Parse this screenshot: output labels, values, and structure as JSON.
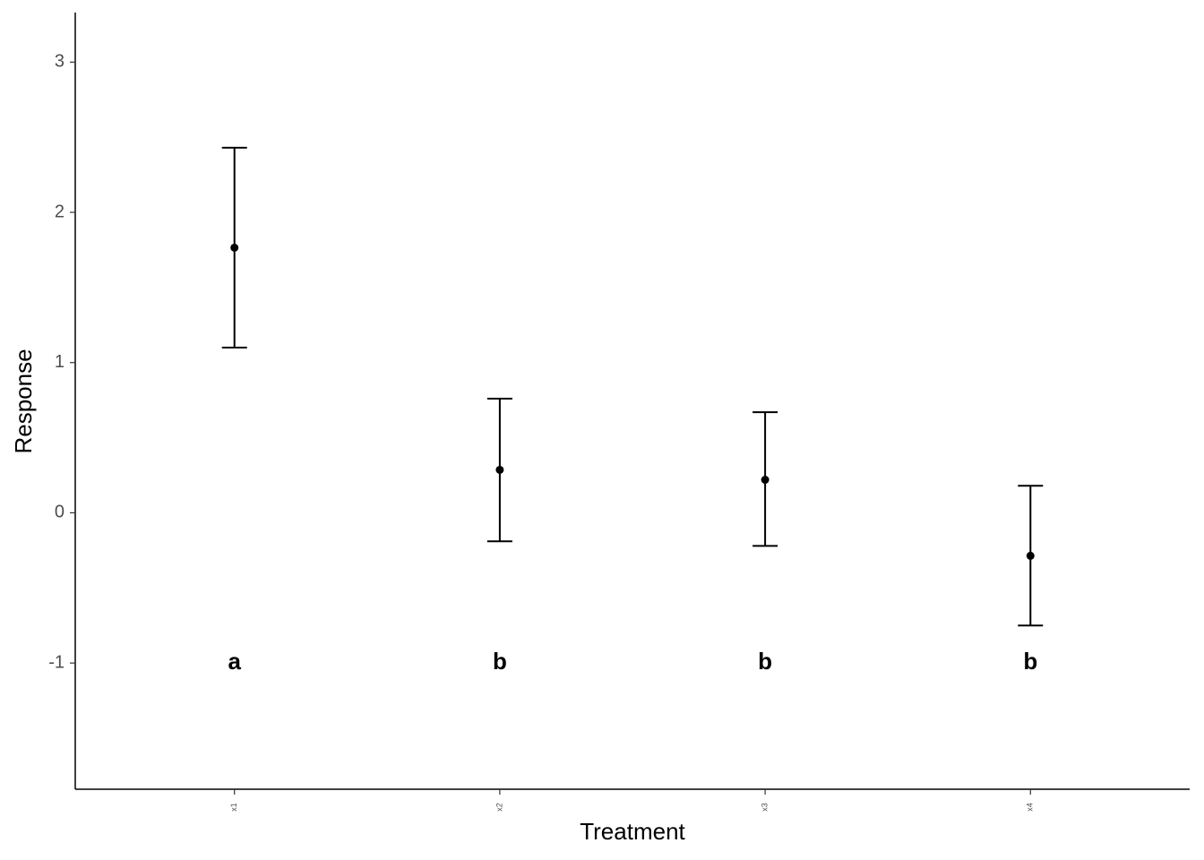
{
  "chart_data": {
    "type": "errorbar",
    "x_label": "Treatment",
    "y_label": "Response",
    "categories": [
      "x1",
      "x2",
      "x3",
      "x4"
    ],
    "values": [
      1.765,
      0.286,
      0.22,
      -0.286
    ],
    "lower": [
      1.1,
      -0.19,
      -0.22,
      -0.75
    ],
    "upper": [
      2.43,
      0.76,
      0.67,
      0.18
    ],
    "color": "#000000",
    "annotations": [
      {
        "text": "a",
        "y": -1
      },
      {
        "text": "b",
        "y": -1
      },
      {
        "text": "b",
        "y": -1
      },
      {
        "text": "b",
        "y": -1
      }
    ],
    "ylim": [
      -1.84,
      3.33
    ],
    "yticks": [
      -1,
      0,
      1,
      2,
      3
    ],
    "grid": false
  }
}
